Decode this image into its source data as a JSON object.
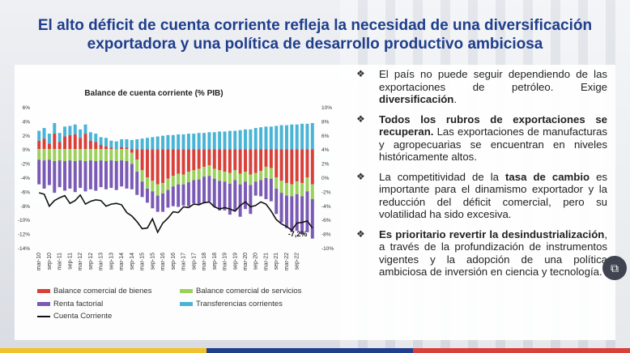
{
  "slide": {
    "title_line1": "El alto déficit de cuenta corriente refleja la necesidad  de una diversificación",
    "title_line2": "exportadora y una política de desarrollo productivo ambiciosa"
  },
  "bullets": [
    {
      "parts": [
        {
          "t": "El país no puede seguir dependiendo de las exportaciones de petróleo. Exige ",
          "b": false
        },
        {
          "t": "diversificación",
          "b": true
        },
        {
          "t": ".",
          "b": false
        }
      ]
    },
    {
      "parts": [
        {
          "t": "Todos los rubros de exportaciones se recuperan.",
          "b": true
        },
        {
          "t": " Las exportaciones de manufacturas y agropecuarias se encuentran en niveles históricamente altos.",
          "b": false
        }
      ]
    },
    {
      "parts": [
        {
          "t": "La competitividad de la ",
          "b": false
        },
        {
          "t": "tasa de cambio",
          "b": true
        },
        {
          "t": " es importante para el dinamismo exportador y la reducción del déficit comercial, pero su volatilidad ha sido excesiva.",
          "b": false
        }
      ]
    },
    {
      "parts": [
        {
          "t": "Es prioritario revertir la desindustrialización",
          "b": true
        },
        {
          "t": ", a través de la profundización de instrumentos vigentes y la adopción de una política ambiciosa de inversión en ciencia y tecnología.",
          "b": false
        }
      ]
    }
  ],
  "bullet_marker": "❖",
  "colors": {
    "title": "#1f3e8c",
    "balance_bienes": "#d9403a",
    "balance_servicios": "#9bd15a",
    "renta_factorial": "#7b5ab6",
    "transferencias": "#49b4d6",
    "cuenta_corriente": "#111111",
    "strip_yellow": "#f2c12e",
    "strip_blue": "#1f3e8c",
    "strip_red": "#d9403a"
  },
  "chart_data": {
    "type": "bar",
    "title": "Balance de cuenta corriente (% PIB)",
    "y_left": {
      "min": -14,
      "max": 6,
      "ticks": [
        "6%",
        "4%",
        "2%",
        "0%",
        "-2%",
        "-4%",
        "-6%",
        "-8%",
        "-10%",
        "-12%",
        "-14%"
      ]
    },
    "y_right": {
      "min": -10,
      "max": 10,
      "ticks": [
        "10%",
        "8%",
        "6%",
        "4%",
        "2%",
        "0%",
        "-2%",
        "-4%",
        "-6%",
        "-8%",
        "-10%"
      ]
    },
    "x_tick_labels": [
      "mar-10",
      "sep-10",
      "mar-11",
      "sep-11",
      "mar-12",
      "sep-12",
      "mar-13",
      "sep-13",
      "mar-14",
      "sep-14",
      "mar-15",
      "sep-15",
      "mar-16",
      "sep-16",
      "mar-17",
      "sep-17",
      "mar-18",
      "sep-18",
      "mar-19",
      "sep-19",
      "mar-20",
      "sep-20",
      "mar-21",
      "sep-21",
      "mar-22",
      "sep-22"
    ],
    "series": [
      {
        "name": "Balance comercial de bienes",
        "stacked": true,
        "values": [
          1.2,
          1.5,
          0.8,
          2.2,
          1.0,
          1.8,
          2.0,
          2.1,
          1.6,
          2.2,
          1.2,
          1.0,
          0.6,
          0.4,
          0.2,
          0.0,
          0.3,
          0.2,
          -0.5,
          -1.5,
          -3.0,
          -4.0,
          -4.5,
          -5.0,
          -4.8,
          -4.2,
          -3.8,
          -3.5,
          -3.6,
          -3.2,
          -3.0,
          -2.8,
          -2.5,
          -2.3,
          -2.8,
          -3.0,
          -3.2,
          -3.4,
          -3.0,
          -3.5,
          -3.2,
          -3.6,
          -3.4,
          -3.1,
          -2.5,
          -2.7,
          -4.0,
          -4.5,
          -4.8,
          -5.0,
          -4.6,
          -4.8,
          -4.0,
          -5.0
        ]
      },
      {
        "name": "Balance comercial de servicios",
        "stacked": true,
        "values": [
          -1.5,
          -1.6,
          -1.5,
          -1.7,
          -1.6,
          -1.7,
          -1.6,
          -1.7,
          -1.6,
          -1.7,
          -1.6,
          -1.7,
          -1.6,
          -1.7,
          -1.6,
          -1.7,
          -1.6,
          -1.7,
          -1.6,
          -1.7,
          -1.6,
          -1.6,
          -1.5,
          -1.6,
          -1.5,
          -1.6,
          -1.5,
          -1.5,
          -1.4,
          -1.5,
          -1.4,
          -1.5,
          -1.4,
          -1.5,
          -1.4,
          -1.5,
          -1.4,
          -1.5,
          -1.4,
          -1.5,
          -1.4,
          -1.5,
          -1.2,
          -1.3,
          -1.6,
          -1.5,
          -1.6,
          -1.7,
          -1.8,
          -1.7,
          -1.8,
          -1.9,
          -2.0,
          -2.1
        ]
      },
      {
        "name": "Renta factorial",
        "stacked": true,
        "values": [
          -3.5,
          -4.0,
          -3.6,
          -4.5,
          -3.8,
          -4.2,
          -4.0,
          -4.4,
          -3.9,
          -4.3,
          -4.1,
          -4.2,
          -3.8,
          -4.0,
          -3.9,
          -4.1,
          -3.7,
          -3.9,
          -3.6,
          -3.3,
          -2.2,
          -2.0,
          -2.4,
          -2.3,
          -2.6,
          -2.5,
          -2.8,
          -3.2,
          -3.0,
          -3.4,
          -3.3,
          -3.6,
          -3.8,
          -3.6,
          -4.0,
          -4.2,
          -4.1,
          -4.4,
          -4.3,
          -4.6,
          -3.9,
          -4.1,
          -2.0,
          -2.3,
          -3.0,
          -3.2,
          -3.6,
          -4.2,
          -4.6,
          -5.0,
          -5.2,
          -5.4,
          -5.8,
          -5.6
        ]
      },
      {
        "name": "Transferencias corrientes",
        "stacked": true,
        "values": [
          1.4,
          1.5,
          1.4,
          1.5,
          1.3,
          1.4,
          1.3,
          1.4,
          1.2,
          1.3,
          1.2,
          1.2,
          1.1,
          1.2,
          1.0,
          1.1,
          1.1,
          1.2,
          1.3,
          1.4,
          1.5,
          1.6,
          1.7,
          1.8,
          1.9,
          2.0,
          2.0,
          2.1,
          2.1,
          2.2,
          2.2,
          2.3,
          2.3,
          2.4,
          2.4,
          2.5,
          2.5,
          2.6,
          2.6,
          2.7,
          2.8,
          2.8,
          3.0,
          3.1,
          3.2,
          3.2,
          3.3,
          3.4,
          3.4,
          3.5,
          3.5,
          3.6,
          3.6,
          3.7
        ]
      },
      {
        "name": "Cuenta Corriente",
        "type": "line",
        "axis": "right",
        "values": [
          -2.2,
          -2.4,
          -4.1,
          -3.3,
          -2.9,
          -2.6,
          -3.7,
          -3.3,
          -2.5,
          -3.8,
          -3.4,
          -3.2,
          -3.3,
          -4.1,
          -3.8,
          -3.7,
          -3.9,
          -5.0,
          -5.5,
          -6.3,
          -7.3,
          -7.2,
          -5.9,
          -7.8,
          -6.5,
          -5.8,
          -4.9,
          -5.0,
          -4.2,
          -4.3,
          -3.8,
          -3.9,
          -3.6,
          -3.5,
          -4.2,
          -4.5,
          -4.3,
          -4.5,
          -4.8,
          -4.0,
          -3.5,
          -4.2,
          -4.0,
          -3.5,
          -3.8,
          -4.8,
          -6.0,
          -6.6,
          -7.0,
          -7.5,
          -6.5,
          -6.4,
          -6.2,
          -7.2
        ]
      }
    ],
    "annotations": [
      {
        "text": "-7,2%"
      }
    ]
  }
}
